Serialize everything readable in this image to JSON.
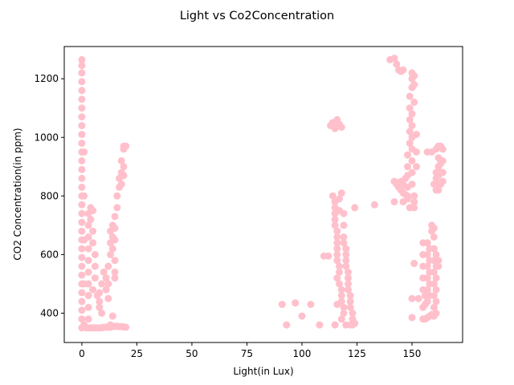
{
  "chart_data": {
    "type": "scatter",
    "title": "Light vs Co2Concentration",
    "xlabel": "Light(in Lux)",
    "ylabel": "CO2 Concentration(in ppm)",
    "xlim": [
      -8,
      173
    ],
    "ylim": [
      300,
      1310
    ],
    "xticks": [
      0,
      25,
      50,
      75,
      100,
      125,
      150
    ],
    "xtick_labels": [
      "0",
      "25",
      "50",
      "75",
      "100",
      "125",
      "150"
    ],
    "yticks": [
      400,
      600,
      800,
      1000,
      1200
    ],
    "ytick_labels": [
      "400",
      "600",
      "800",
      "1000",
      "1200"
    ],
    "grid": false,
    "legend": false,
    "point_color": "#ffc0cb",
    "points": [
      [
        0,
        350
      ],
      [
        0,
        380
      ],
      [
        0,
        410
      ],
      [
        0,
        440
      ],
      [
        0,
        470
      ],
      [
        0,
        500
      ],
      [
        0,
        530
      ],
      [
        0,
        560
      ],
      [
        0,
        590
      ],
      [
        0,
        620
      ],
      [
        0,
        650
      ],
      [
        0,
        680
      ],
      [
        0,
        710
      ],
      [
        0,
        740
      ],
      [
        0,
        770
      ],
      [
        0,
        800
      ],
      [
        0,
        830
      ],
      [
        0,
        860
      ],
      [
        0,
        890
      ],
      [
        0,
        920
      ],
      [
        0,
        950
      ],
      [
        0,
        980
      ],
      [
        0,
        1010
      ],
      [
        0,
        1040
      ],
      [
        0,
        1070
      ],
      [
        0,
        1100
      ],
      [
        0,
        1130
      ],
      [
        0,
        1160
      ],
      [
        0,
        1190
      ],
      [
        0,
        1220
      ],
      [
        0,
        1245
      ],
      [
        0,
        1265
      ],
      [
        1,
        360
      ],
      [
        1,
        500
      ],
      [
        1,
        650
      ],
      [
        1,
        800
      ],
      [
        1,
        950
      ],
      [
        2,
        350
      ],
      [
        3,
        350
      ],
      [
        4,
        350
      ],
      [
        5,
        350
      ],
      [
        6,
        350
      ],
      [
        7,
        350
      ],
      [
        8,
        350
      ],
      [
        9,
        350
      ],
      [
        10,
        352
      ],
      [
        11,
        352
      ],
      [
        12,
        352
      ],
      [
        13,
        352
      ],
      [
        14,
        355
      ],
      [
        15,
        355
      ],
      [
        16,
        355
      ],
      [
        17,
        354
      ],
      [
        18,
        354
      ],
      [
        19,
        353
      ],
      [
        20,
        352
      ],
      [
        3,
        380
      ],
      [
        3,
        420
      ],
      [
        3,
        460
      ],
      [
        3,
        500
      ],
      [
        3,
        540
      ],
      [
        3,
        580
      ],
      [
        3,
        620
      ],
      [
        3,
        660
      ],
      [
        3,
        700
      ],
      [
        3,
        740
      ],
      [
        4,
        760
      ],
      [
        5,
        750
      ],
      [
        4,
        720
      ],
      [
        5,
        680
      ],
      [
        5,
        640
      ],
      [
        6,
        600
      ],
      [
        6,
        560
      ],
      [
        6,
        520
      ],
      [
        5,
        480
      ],
      [
        7,
        460
      ],
      [
        8,
        440
      ],
      [
        8,
        420
      ],
      [
        9,
        400
      ],
      [
        8,
        470
      ],
      [
        9,
        500
      ],
      [
        10,
        540
      ],
      [
        11,
        520
      ],
      [
        11,
        480
      ],
      [
        12,
        450
      ],
      [
        12,
        500
      ],
      [
        12,
        560
      ],
      [
        13,
        600
      ],
      [
        13,
        640
      ],
      [
        13,
        680
      ],
      [
        14,
        700
      ],
      [
        14,
        660
      ],
      [
        14,
        620
      ],
      [
        15,
        580
      ],
      [
        15,
        540
      ],
      [
        15,
        520
      ],
      [
        15,
        650
      ],
      [
        15,
        690
      ],
      [
        15,
        730
      ],
      [
        16,
        760
      ],
      [
        16,
        800
      ],
      [
        17,
        830
      ],
      [
        17,
        860
      ],
      [
        18,
        840
      ],
      [
        18,
        880
      ],
      [
        18,
        920
      ],
      [
        19,
        960
      ],
      [
        19,
        970
      ],
      [
        20,
        970
      ],
      [
        19,
        900
      ],
      [
        19,
        870
      ],
      [
        13,
        360
      ],
      [
        14,
        390
      ],
      [
        91,
        430
      ],
      [
        93,
        360
      ],
      [
        97,
        435
      ],
      [
        100,
        390
      ],
      [
        104,
        430
      ],
      [
        108,
        360
      ],
      [
        110,
        595
      ],
      [
        112,
        595
      ],
      [
        113,
        1040
      ],
      [
        114,
        1050
      ],
      [
        115,
        1030
      ],
      [
        116,
        1060
      ],
      [
        117,
        1045
      ],
      [
        118,
        1035
      ],
      [
        114,
        800
      ],
      [
        115,
        780
      ],
      [
        115,
        760
      ],
      [
        115,
        740
      ],
      [
        115,
        720
      ],
      [
        115,
        700
      ],
      [
        116,
        680
      ],
      [
        116,
        660
      ],
      [
        116,
        640
      ],
      [
        116,
        620
      ],
      [
        116,
        600
      ],
      [
        116,
        580
      ],
      [
        117,
        560
      ],
      [
        117,
        540
      ],
      [
        116,
        520
      ],
      [
        117,
        500
      ],
      [
        118,
        480
      ],
      [
        118,
        460
      ],
      [
        118,
        440
      ],
      [
        119,
        420
      ],
      [
        119,
        400
      ],
      [
        118,
        380
      ],
      [
        118,
        810
      ],
      [
        117,
        790
      ],
      [
        117,
        750
      ],
      [
        119,
        740
      ],
      [
        119,
        700
      ],
      [
        119,
        660
      ],
      [
        119,
        640
      ],
      [
        120,
        620
      ],
      [
        120,
        600
      ],
      [
        120,
        580
      ],
      [
        120,
        560
      ],
      [
        121,
        540
      ],
      [
        121,
        520
      ],
      [
        121,
        500
      ],
      [
        121,
        480
      ],
      [
        122,
        460
      ],
      [
        122,
        440
      ],
      [
        122,
        420
      ],
      [
        123,
        400
      ],
      [
        123,
        380
      ],
      [
        124,
        365
      ],
      [
        123,
        360
      ],
      [
        122,
        360
      ],
      [
        120,
        360
      ],
      [
        115,
        360
      ],
      [
        116,
        430
      ],
      [
        124,
        760
      ],
      [
        133,
        770
      ],
      [
        140,
        1265
      ],
      [
        142,
        1270
      ],
      [
        143,
        1250
      ],
      [
        144,
        1230
      ],
      [
        145,
        1225
      ],
      [
        146,
        1230
      ],
      [
        142,
        850
      ],
      [
        143,
        840
      ],
      [
        144,
        830
      ],
      [
        145,
        820
      ],
      [
        146,
        810
      ],
      [
        147,
        805
      ],
      [
        148,
        800
      ],
      [
        146,
        840
      ],
      [
        147,
        860
      ],
      [
        145,
        850
      ],
      [
        142,
        780
      ],
      [
        146,
        780
      ],
      [
        148,
        790
      ],
      [
        148,
        830
      ],
      [
        148,
        870
      ],
      [
        148,
        900
      ],
      [
        148,
        940
      ],
      [
        149,
        980
      ],
      [
        149,
        1020
      ],
      [
        149,
        1060
      ],
      [
        149,
        1100
      ],
      [
        149,
        1140
      ],
      [
        150,
        1170
      ],
      [
        150,
        1200
      ],
      [
        150,
        1220
      ],
      [
        151,
        1210
      ],
      [
        151,
        1180
      ],
      [
        151,
        1120
      ],
      [
        150,
        1080
      ],
      [
        150,
        1040
      ],
      [
        150,
        1000
      ],
      [
        150,
        960
      ],
      [
        150,
        920
      ],
      [
        150,
        880
      ],
      [
        150,
        840
      ],
      [
        151,
        800
      ],
      [
        151,
        780
      ],
      [
        151,
        760
      ],
      [
        149,
        760
      ],
      [
        152,
        1010
      ],
      [
        152,
        950
      ],
      [
        152,
        900
      ],
      [
        150,
        450
      ],
      [
        150,
        385
      ],
      [
        151,
        570
      ],
      [
        153,
        450
      ],
      [
        155,
        380
      ],
      [
        156,
        380
      ],
      [
        157,
        385
      ],
      [
        158,
        390
      ],
      [
        159,
        395
      ],
      [
        160,
        390
      ],
      [
        155,
        640
      ],
      [
        155,
        600
      ],
      [
        155,
        560
      ],
      [
        155,
        520
      ],
      [
        155,
        480
      ],
      [
        156,
        460
      ],
      [
        156,
        430
      ],
      [
        155,
        420
      ],
      [
        157,
        640
      ],
      [
        157,
        600
      ],
      [
        157,
        560
      ],
      [
        157,
        520
      ],
      [
        157,
        480
      ],
      [
        157,
        440
      ],
      [
        158,
        620
      ],
      [
        158,
        580
      ],
      [
        158,
        540
      ],
      [
        158,
        500
      ],
      [
        158,
        460
      ],
      [
        159,
        680
      ],
      [
        159,
        700
      ],
      [
        160,
        690
      ],
      [
        160,
        660
      ],
      [
        160,
        620
      ],
      [
        160,
        580
      ],
      [
        160,
        540
      ],
      [
        160,
        500
      ],
      [
        160,
        460
      ],
      [
        160,
        420
      ],
      [
        161,
        600
      ],
      [
        161,
        560
      ],
      [
        161,
        520
      ],
      [
        161,
        480
      ],
      [
        161,
        440
      ],
      [
        161,
        400
      ],
      [
        162,
        580
      ],
      [
        162,
        560
      ],
      [
        157,
        950
      ],
      [
        159,
        950
      ],
      [
        161,
        960
      ],
      [
        162,
        970
      ],
      [
        163,
        970
      ],
      [
        164,
        960
      ],
      [
        162,
        930
      ],
      [
        162,
        900
      ],
      [
        162,
        870
      ],
      [
        162,
        840
      ],
      [
        162,
        820
      ],
      [
        163,
        840
      ],
      [
        163,
        880
      ],
      [
        163,
        910
      ],
      [
        164,
        920
      ],
      [
        164,
        880
      ],
      [
        164,
        850
      ],
      [
        161,
        860
      ],
      [
        160,
        840
      ],
      [
        161,
        820
      ],
      [
        161,
        880
      ]
    ]
  }
}
